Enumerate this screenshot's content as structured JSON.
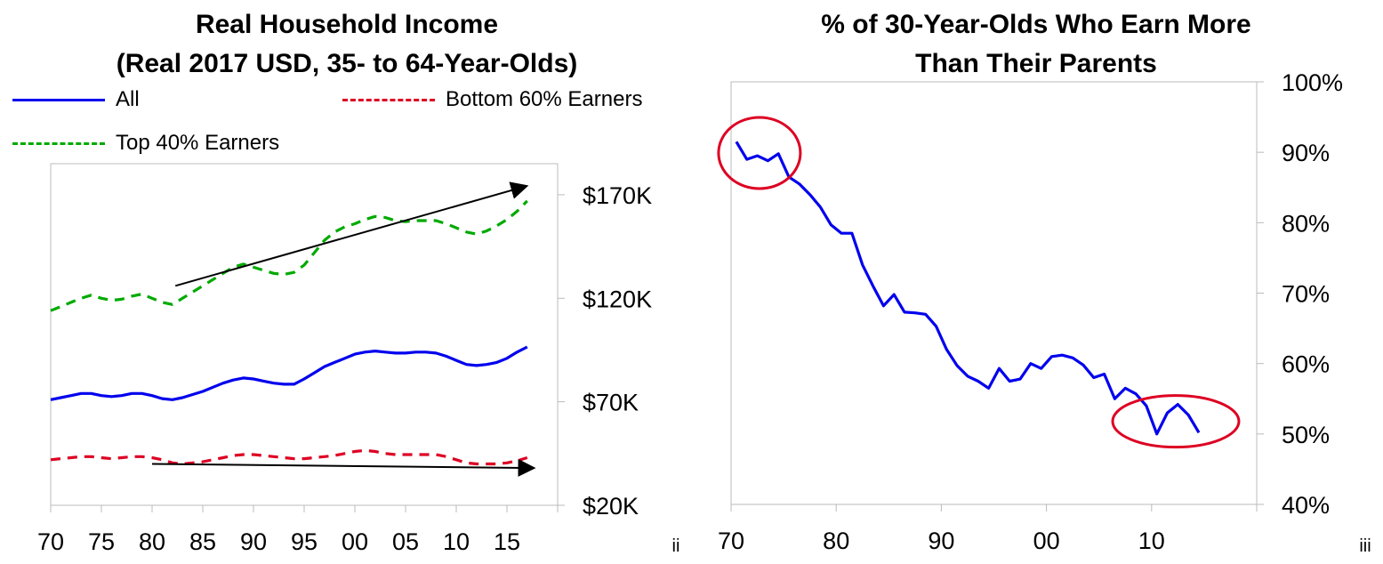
{
  "chart_data": [
    {
      "type": "line",
      "title": "Real Household Income",
      "subtitle": "(Real 2017 USD, 35- to 64-Year-Olds)",
      "x_tick_labels": [
        "70",
        "75",
        "80",
        "85",
        "90",
        "95",
        "00",
        "05",
        "10",
        "15"
      ],
      "x_tick_years": [
        1970,
        1975,
        1980,
        1985,
        1990,
        1995,
        2000,
        2005,
        2010,
        2015
      ],
      "xlim": [
        1970,
        2020
      ],
      "y_ticks": [
        20,
        70,
        120,
        170
      ],
      "y_tick_labels": [
        "$20K",
        "$70K",
        "$120K",
        "$170K"
      ],
      "ylim": [
        20,
        185
      ],
      "y_axis_side": "right",
      "legend_position": "top",
      "footnote": "ii",
      "x": [
        1970,
        1971,
        1972,
        1973,
        1974,
        1975,
        1976,
        1977,
        1978,
        1979,
        1980,
        1981,
        1982,
        1983,
        1984,
        1985,
        1986,
        1987,
        1988,
        1989,
        1990,
        1991,
        1992,
        1993,
        1994,
        1995,
        1996,
        1997,
        1998,
        1999,
        2000,
        2001,
        2002,
        2003,
        2004,
        2005,
        2006,
        2007,
        2008,
        2009,
        2010,
        2011,
        2012,
        2013,
        2014,
        2015,
        2016,
        2017
      ],
      "series": [
        {
          "name": "All",
          "color": "#0000ee",
          "style": "solid",
          "values": [
            71,
            72,
            73,
            74,
            74,
            73,
            72.5,
            73,
            74,
            74,
            73,
            71.5,
            71,
            72,
            73.5,
            75,
            77,
            79,
            80.5,
            81.5,
            81,
            80,
            79,
            78.5,
            78.5,
            81,
            84,
            87,
            89,
            91,
            93,
            94,
            94.5,
            94,
            93.5,
            93.5,
            94,
            94,
            93.5,
            92,
            90,
            88,
            87.5,
            88,
            89,
            91,
            94,
            96.5
          ]
        },
        {
          "name": "Bottom 60% Earners",
          "color": "#dd0022",
          "style": "dashed",
          "values": [
            42,
            42.5,
            43,
            43.5,
            43.5,
            43,
            42.5,
            43,
            43.5,
            43.5,
            43,
            42,
            40.5,
            40,
            40.5,
            41,
            42,
            43,
            44,
            44.5,
            44.5,
            44,
            43.5,
            43,
            42.5,
            42.5,
            43,
            43.5,
            44,
            45,
            46,
            46.5,
            46,
            45,
            44.5,
            44.5,
            44.5,
            44.5,
            44.5,
            43.5,
            42,
            40.5,
            40,
            40,
            40,
            40.5,
            41.5,
            43
          ]
        },
        {
          "name": "Top 40% Earners",
          "color": "#00aa00",
          "style": "dashed",
          "values": [
            114,
            116,
            118,
            120,
            121.5,
            120,
            119,
            119.5,
            121,
            122,
            120,
            118,
            117,
            120,
            123,
            126,
            129,
            132,
            135,
            136.5,
            135,
            133.5,
            132,
            131.5,
            132.5,
            136,
            142,
            148,
            152,
            154.5,
            156,
            158,
            159.5,
            159,
            157.5,
            157,
            157.5,
            157.5,
            157.5,
            156,
            154,
            152,
            151,
            152.5,
            155,
            158,
            162,
            167
          ]
        }
      ],
      "annotations": [
        "up-arrow-top-40",
        "flat-arrow-bottom-60"
      ]
    },
    {
      "type": "line",
      "title": "% of 30-Year-Olds Who Earn More",
      "subtitle": "Than Their Parents",
      "x_tick_labels": [
        "70",
        "80",
        "90",
        "00",
        "10"
      ],
      "x_tick_years": [
        1970,
        1980,
        1990,
        2000,
        2010
      ],
      "xlim": [
        1970,
        2020
      ],
      "y_ticks": [
        40,
        50,
        60,
        70,
        80,
        90,
        100
      ],
      "y_tick_labels": [
        "40%",
        "50%",
        "60%",
        "70%",
        "80%",
        "90%",
        "100%"
      ],
      "ylim": [
        40,
        100
      ],
      "y_axis_side": "right",
      "footnote": "iii",
      "x": [
        1970.5,
        1971.5,
        1972.5,
        1973.5,
        1974.5,
        1975.5,
        1976.5,
        1977.5,
        1978.5,
        1979.5,
        1980.5,
        1981.5,
        1982.5,
        1983.5,
        1984.5,
        1985.5,
        1986.5,
        1987.5,
        1988.5,
        1989.5,
        1990.5,
        1991.5,
        1992.5,
        1993.5,
        1994.5,
        1995.5,
        1996.5,
        1997.5,
        1998.5,
        1999.5,
        2000.5,
        2001.5,
        2002.5,
        2003.5,
        2004.5,
        2005.5,
        2006.5,
        2007.5,
        2008.5,
        2009.5,
        2010.5,
        2011.5,
        2012.5,
        2013.5,
        2014.5
      ],
      "series": [
        {
          "name": "",
          "color": "#0000ee",
          "style": "solid",
          "values": [
            91.5,
            89,
            89.5,
            88.8,
            89.8,
            86.5,
            85.5,
            84,
            82.2,
            79.7,
            78.5,
            78.5,
            74,
            71,
            68.2,
            69.8,
            67.3,
            67.2,
            67,
            65.3,
            62,
            59.7,
            58.2,
            57.5,
            56.5,
            59.3,
            57.5,
            57.8,
            60,
            59.3,
            61,
            61.2,
            60.8,
            59.8,
            58,
            58.5,
            55,
            56.5,
            55.7,
            54,
            50,
            53,
            54.2,
            52.7,
            50.2
          ]
        }
      ],
      "annotations": [
        "circle-early-70s",
        "circle-2010s"
      ]
    }
  ],
  "left": {
    "title_line1": "Real Household Income",
    "title_line2": "(Real 2017 USD, 35- to 64-Year-Olds)",
    "legend": {
      "all": "All",
      "bottom60": "Bottom 60% Earners",
      "top40": "Top 40% Earners"
    },
    "colors": {
      "all": "#0000ee",
      "bottom60": "#dd0022",
      "top40": "#00aa00"
    }
  },
  "right": {
    "title_line1": "% of 30-Year-Olds Who Earn More",
    "title_line2": "Than Their Parents",
    "circle_color": "#dd0022"
  }
}
